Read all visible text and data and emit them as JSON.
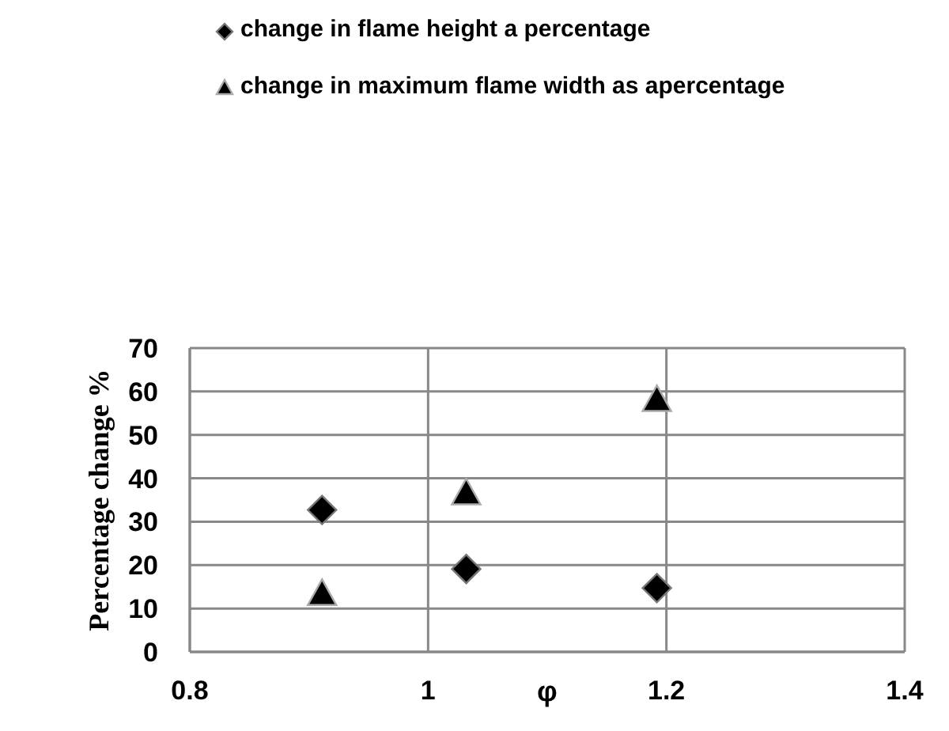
{
  "chart_data": {
    "type": "scatter",
    "xlabel": "φ",
    "ylabel": "Percentage change %",
    "xlim": [
      0.8,
      1.4
    ],
    "xticks": [
      0.8,
      1,
      1.2,
      1.4
    ],
    "ylim": [
      0,
      70
    ],
    "yticks": [
      0,
      10,
      20,
      30,
      40,
      50,
      60,
      70
    ],
    "grid": true,
    "legend": "top",
    "series": [
      {
        "name": "change in flame height a percentage",
        "color": "#000000",
        "marker": "diamond",
        "x": [
          0.911,
          1.032,
          1.192
        ],
        "values": [
          32.7,
          19.1,
          14.7
        ]
      },
      {
        "name": "change in maximum flame width as apercentage",
        "color": "#000000",
        "marker": "triangle",
        "x": [
          0.911,
          1.032,
          1.192
        ],
        "values": [
          13.1,
          36.3,
          57.8
        ]
      }
    ]
  }
}
